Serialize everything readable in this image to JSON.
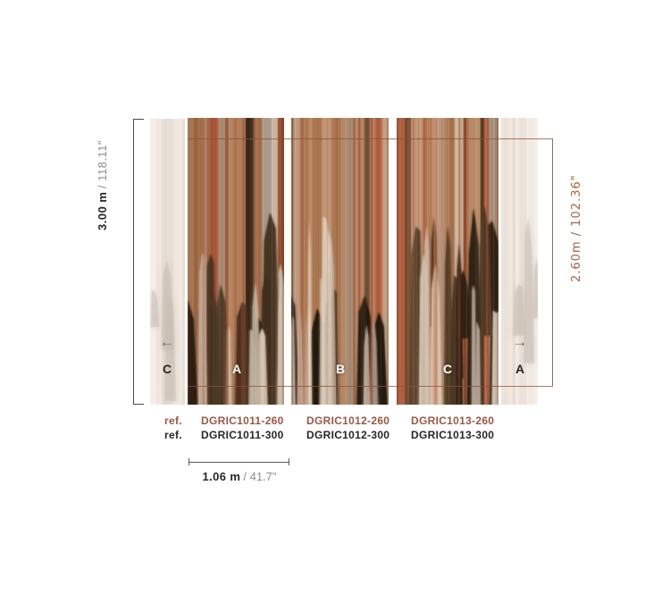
{
  "diagram": {
    "dimensions": {
      "height": {
        "metric": "3.00 m",
        "imperial": "/ 118.11\""
      },
      "trim_height": {
        "text": "2.60m / 102.36\""
      },
      "panel_width": {
        "metric": "1.06 m",
        "imperial": "/ 41.7\""
      }
    },
    "panels": {
      "left_repeat": {
        "letter": "C"
      },
      "main": [
        {
          "letter": "A"
        },
        {
          "letter": "B"
        },
        {
          "letter": "C"
        }
      ],
      "right_repeat": {
        "letter": "A"
      }
    },
    "icons": {
      "arrow_left": "←",
      "arrow_right": "→"
    },
    "references": {
      "rows": [
        {
          "label": "ref.",
          "items": [
            "DGRIC1011-260",
            "DGRIC1012-260",
            "DGRIC1013-260"
          ]
        },
        {
          "label": "ref.",
          "items": [
            "DGRIC1011-300",
            "DGRIC1012-300",
            "DGRIC1013-300"
          ]
        }
      ]
    },
    "colors": {
      "rust_text": "#9a5743",
      "rust_dim": "#a8613c",
      "dark_text": "#262626",
      "gray_text": "#8c8c8c",
      "dim_line": "#4a4a4a",
      "trim_line": "#8e4f35",
      "bracket_right": "#8c7260",
      "mural_base": "#b3805c",
      "pale_base": "#f3ece5"
    }
  }
}
